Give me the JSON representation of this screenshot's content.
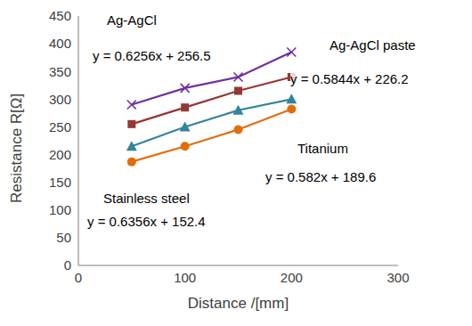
{
  "chart_data": {
    "type": "line",
    "x_label": "Distance /[mm]",
    "y_label": "Resistance  R[Ω]",
    "x": [
      50,
      100,
      150,
      200
    ],
    "xlim": [
      0,
      300
    ],
    "xticks": [
      0,
      100,
      200,
      300
    ],
    "ylim": [
      0,
      450
    ],
    "yticks": [
      0,
      50,
      100,
      150,
      200,
      250,
      300,
      350,
      400,
      450
    ],
    "grid": false,
    "series": [
      {
        "name": "Ag-AgCl",
        "color": "#7030a0",
        "marker": "x",
        "equation": "y = 0.6256x + 256.5",
        "values": [
          290,
          320,
          340,
          385
        ]
      },
      {
        "name": "Ag-AgCl paste",
        "color": "#953735",
        "marker": "square",
        "equation": "y = 0.5844x + 226.2",
        "values": [
          255,
          285,
          315,
          340
        ]
      },
      {
        "name": "Titanium",
        "color": "#31859c",
        "marker": "triangle",
        "equation": "y = 0.582x + 189.6",
        "values": [
          215,
          250,
          280,
          300
        ]
      },
      {
        "name": "Stainless steel",
        "color": "#e46c0a",
        "marker": "circle",
        "equation": "y = 0.6356x + 152.4",
        "values": [
          187,
          215,
          245,
          282
        ]
      }
    ]
  }
}
